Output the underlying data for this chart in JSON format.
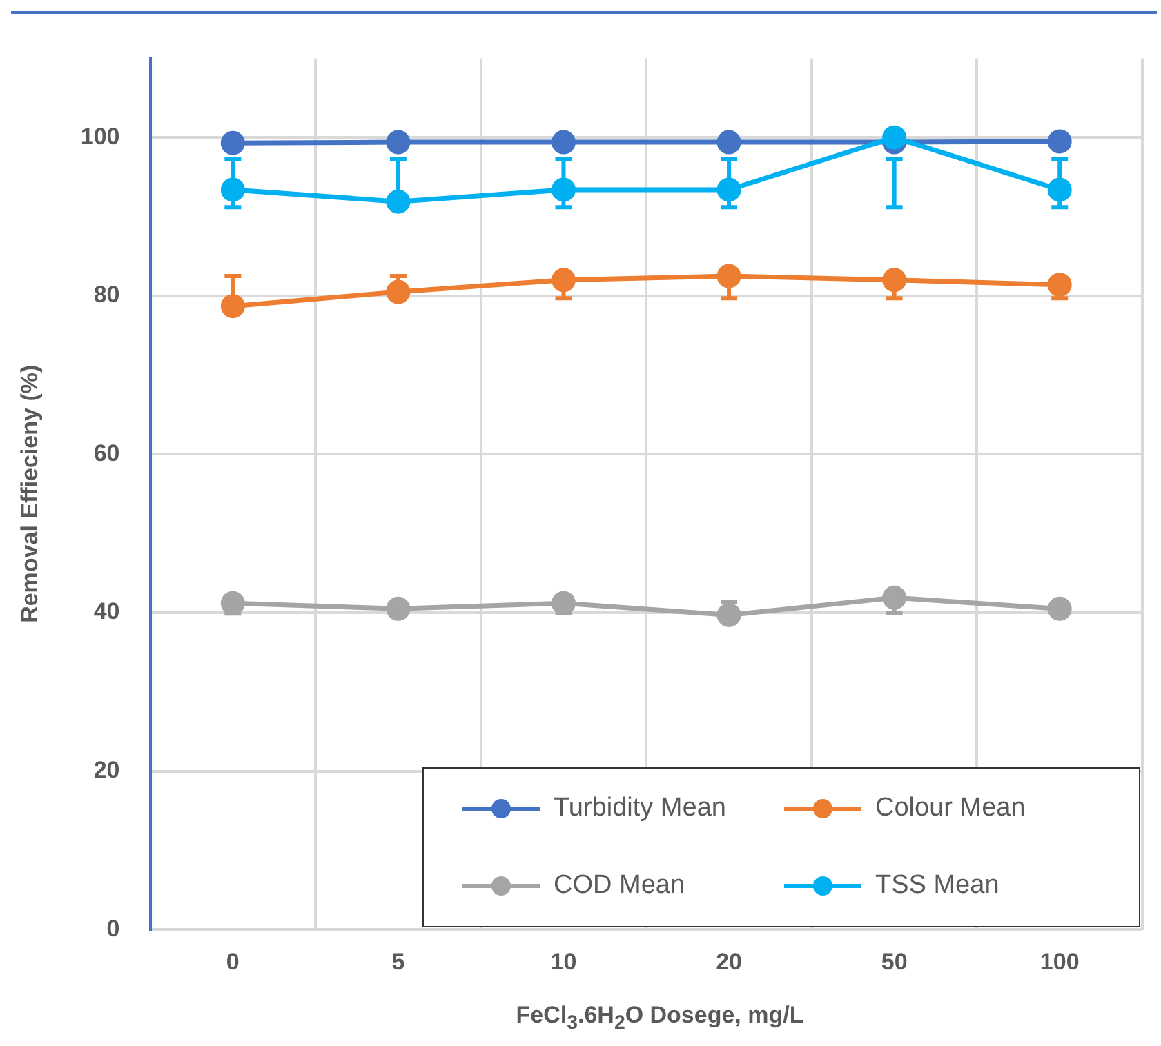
{
  "chart_data": {
    "type": "line",
    "xlabel": "FeCl$_{3}$.6H$_{2}$O Dosege, mg/L",
    "ylabel": "Removal Effiecieny (%)",
    "categories": [
      "0",
      "5",
      "10",
      "20",
      "50",
      "100"
    ],
    "ylim": [
      0,
      110
    ],
    "yticks": [
      0,
      20,
      40,
      60,
      80,
      100
    ],
    "grid": true,
    "legend": "bottom right",
    "marker": "circle",
    "line_style": "solid",
    "series": [
      {
        "name": "Turbidity Mean",
        "color": "#4472c4",
        "values": [
          99.3,
          99.4,
          99.4,
          99.4,
          99.4,
          99.5
        ]
      },
      {
        "name": "Colour Mean",
        "color": "#ed7d31",
        "values": [
          78.7,
          80.5,
          82.0,
          82.5,
          82.0,
          81.4
        ],
        "errors": [
          [
            78.7,
            82.5
          ],
          [
            80.5,
            82.5
          ],
          [
            79.7,
            82.0
          ],
          [
            79.7,
            82.5
          ],
          [
            79.7,
            82.0
          ],
          [
            79.7,
            81.4
          ]
        ]
      },
      {
        "name": "COD Mean",
        "color": "#a5a5a5",
        "values": [
          41.2,
          40.5,
          41.2,
          39.7,
          41.9,
          40.5
        ],
        "errors": [
          [
            39.9,
            41.2
          ],
          [
            40.5,
            41.4
          ],
          [
            40.0,
            41.2
          ],
          [
            39.7,
            41.4
          ],
          [
            40.0,
            41.9
          ],
          [
            40.5,
            41.4
          ]
        ]
      },
      {
        "name": "TSS Mean",
        "color": "#00b0f0",
        "values": [
          93.4,
          91.9,
          93.4,
          93.4,
          100,
          93.4
        ],
        "errors": [
          [
            91.2,
            97.3
          ],
          [
            91.9,
            97.3
          ],
          [
            91.2,
            97.3
          ],
          [
            91.2,
            97.3
          ],
          [
            91.2,
            97.3
          ],
          [
            91.2,
            97.3
          ]
        ]
      }
    ]
  }
}
